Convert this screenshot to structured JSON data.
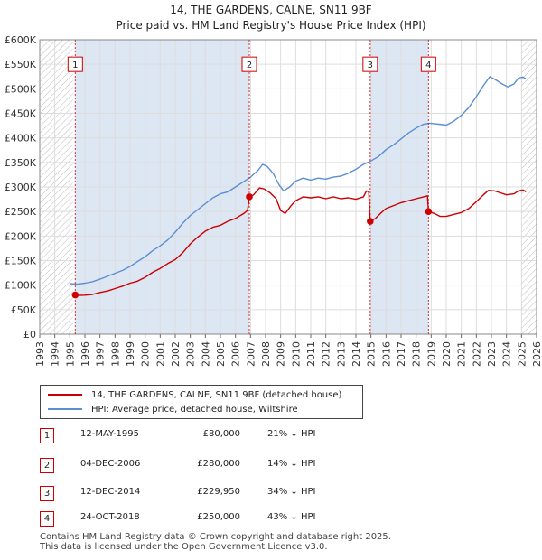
{
  "title": "14, THE GARDENS, CALNE, SN11 9BF",
  "subtitle": "Price paid vs. HM Land Registry's House Price Index (HPI)",
  "colors": {
    "property": "#cc0000",
    "hpi": "#5b8fd0",
    "shade": "#dde6f3",
    "grid": "#dddddd",
    "marker": "#cc0000"
  },
  "chart_data": {
    "type": "line",
    "title": "14, THE GARDENS, CALNE, SN11 9BF",
    "subtitle": "Price paid vs. HM Land Registry's House Price Index (HPI)",
    "xlabel": "",
    "ylabel": "",
    "xlim": [
      1993,
      2026
    ],
    "ylim": [
      0,
      600000
    ],
    "x_ticks": [
      "1993",
      "1994",
      "1995",
      "1996",
      "1997",
      "1998",
      "1999",
      "2000",
      "2001",
      "2002",
      "2003",
      "2004",
      "2005",
      "2006",
      "2007",
      "2008",
      "2009",
      "2010",
      "2011",
      "2012",
      "2013",
      "2014",
      "2015",
      "2016",
      "2017",
      "2018",
      "2019",
      "2020",
      "2021",
      "2022",
      "2023",
      "2024",
      "2025",
      "2026"
    ],
    "y_ticks": [
      "£0",
      "£50K",
      "£100K",
      "£150K",
      "£200K",
      "£250K",
      "£300K",
      "£350K",
      "£400K",
      "£450K",
      "£500K",
      "£550K",
      "£600K"
    ],
    "hatched_ranges": [
      [
        1993,
        1995.2
      ],
      [
        2025.0,
        2026
      ]
    ],
    "shaded_ranges": [
      [
        1995.36,
        2006.92
      ],
      [
        2014.95,
        2018.82
      ]
    ],
    "series": [
      {
        "name": "14, THE GARDENS, CALNE, SN11 9BF (detached house)",
        "color": "#cc0000",
        "points": [
          [
            1995.2,
            84000
          ],
          [
            1995.36,
            80000
          ],
          [
            1995.6,
            79000
          ],
          [
            1996.0,
            79500
          ],
          [
            1996.5,
            81000
          ],
          [
            1997.0,
            85000
          ],
          [
            1997.5,
            88000
          ],
          [
            1998.0,
            93000
          ],
          [
            1998.5,
            98000
          ],
          [
            1999.0,
            104000
          ],
          [
            1999.5,
            108000
          ],
          [
            2000.0,
            116000
          ],
          [
            2000.5,
            126000
          ],
          [
            2001.0,
            134000
          ],
          [
            2001.5,
            144000
          ],
          [
            2002.0,
            152000
          ],
          [
            2002.5,
            166000
          ],
          [
            2003.0,
            184000
          ],
          [
            2003.5,
            198000
          ],
          [
            2004.0,
            210000
          ],
          [
            2004.5,
            218000
          ],
          [
            2005.0,
            222000
          ],
          [
            2005.5,
            230000
          ],
          [
            2006.0,
            236000
          ],
          [
            2006.5,
            245000
          ],
          [
            2006.8,
            252000
          ],
          [
            2006.92,
            280000
          ],
          [
            2007.2,
            284000
          ],
          [
            2007.6,
            298000
          ],
          [
            2007.9,
            296000
          ],
          [
            2008.3,
            288000
          ],
          [
            2008.7,
            276000
          ],
          [
            2009.0,
            252000
          ],
          [
            2009.3,
            246000
          ],
          [
            2009.7,
            262000
          ],
          [
            2010.0,
            272000
          ],
          [
            2010.5,
            280000
          ],
          [
            2011.0,
            278000
          ],
          [
            2011.5,
            280000
          ],
          [
            2012.0,
            276000
          ],
          [
            2012.5,
            280000
          ],
          [
            2013.0,
            276000
          ],
          [
            2013.5,
            278000
          ],
          [
            2014.0,
            275000
          ],
          [
            2014.5,
            280000
          ],
          [
            2014.7,
            292000
          ],
          [
            2014.85,
            290000
          ],
          [
            2014.95,
            229950
          ],
          [
            2015.3,
            236000
          ],
          [
            2015.7,
            248000
          ],
          [
            2016.0,
            256000
          ],
          [
            2016.5,
            262000
          ],
          [
            2017.0,
            268000
          ],
          [
            2017.5,
            272000
          ],
          [
            2018.0,
            276000
          ],
          [
            2018.5,
            280000
          ],
          [
            2018.75,
            282000
          ],
          [
            2018.82,
            250000
          ],
          [
            2019.2,
            246000
          ],
          [
            2019.6,
            240000
          ],
          [
            2020.0,
            240000
          ],
          [
            2020.5,
            244000
          ],
          [
            2021.0,
            248000
          ],
          [
            2021.5,
            256000
          ],
          [
            2022.0,
            270000
          ],
          [
            2022.5,
            285000
          ],
          [
            2022.8,
            293000
          ],
          [
            2023.2,
            292000
          ],
          [
            2023.6,
            288000
          ],
          [
            2024.0,
            284000
          ],
          [
            2024.5,
            286000
          ],
          [
            2024.8,
            292000
          ],
          [
            2025.1,
            294000
          ],
          [
            2025.3,
            290000
          ]
        ]
      },
      {
        "name": "HPI: Average price, detached house, Wiltshire",
        "color": "#5b8fd0",
        "points": [
          [
            1995.0,
            103000
          ],
          [
            1995.5,
            102000
          ],
          [
            1996.0,
            104000
          ],
          [
            1996.5,
            107000
          ],
          [
            1997.0,
            112000
          ],
          [
            1997.5,
            118000
          ],
          [
            1998.0,
            124000
          ],
          [
            1998.5,
            130000
          ],
          [
            1999.0,
            138000
          ],
          [
            1999.5,
            148000
          ],
          [
            2000.0,
            158000
          ],
          [
            2000.5,
            170000
          ],
          [
            2001.0,
            180000
          ],
          [
            2001.5,
            192000
          ],
          [
            2002.0,
            208000
          ],
          [
            2002.5,
            226000
          ],
          [
            2003.0,
            242000
          ],
          [
            2003.5,
            254000
          ],
          [
            2004.0,
            266000
          ],
          [
            2004.5,
            278000
          ],
          [
            2005.0,
            286000
          ],
          [
            2005.5,
            290000
          ],
          [
            2006.0,
            300000
          ],
          [
            2006.5,
            310000
          ],
          [
            2007.0,
            320000
          ],
          [
            2007.5,
            334000
          ],
          [
            2007.8,
            346000
          ],
          [
            2008.1,
            342000
          ],
          [
            2008.5,
            328000
          ],
          [
            2008.9,
            304000
          ],
          [
            2009.2,
            292000
          ],
          [
            2009.6,
            300000
          ],
          [
            2010.0,
            312000
          ],
          [
            2010.5,
            318000
          ],
          [
            2011.0,
            314000
          ],
          [
            2011.5,
            318000
          ],
          [
            2012.0,
            316000
          ],
          [
            2012.5,
            320000
          ],
          [
            2013.0,
            322000
          ],
          [
            2013.5,
            328000
          ],
          [
            2014.0,
            336000
          ],
          [
            2014.5,
            346000
          ],
          [
            2014.95,
            352000
          ],
          [
            2015.5,
            362000
          ],
          [
            2016.0,
            376000
          ],
          [
            2016.5,
            386000
          ],
          [
            2017.0,
            398000
          ],
          [
            2017.5,
            410000
          ],
          [
            2018.0,
            420000
          ],
          [
            2018.5,
            428000
          ],
          [
            2018.9,
            430000
          ],
          [
            2019.5,
            428000
          ],
          [
            2020.0,
            426000
          ],
          [
            2020.5,
            434000
          ],
          [
            2021.0,
            446000
          ],
          [
            2021.5,
            462000
          ],
          [
            2022.0,
            484000
          ],
          [
            2022.5,
            508000
          ],
          [
            2022.9,
            525000
          ],
          [
            2023.3,
            518000
          ],
          [
            2023.7,
            510000
          ],
          [
            2024.1,
            504000
          ],
          [
            2024.5,
            510000
          ],
          [
            2024.8,
            522000
          ],
          [
            2025.1,
            524000
          ],
          [
            2025.3,
            520000
          ]
        ]
      }
    ],
    "annotations": [
      {
        "label": "1",
        "x": 1995.36,
        "y": 80000,
        "label_y": 550000
      },
      {
        "label": "2",
        "x": 2006.92,
        "y": 280000,
        "label_y": 550000
      },
      {
        "label": "3",
        "x": 2014.95,
        "y": 229950,
        "label_y": 550000
      },
      {
        "label": "4",
        "x": 2018.82,
        "y": 250000,
        "label_y": 550000
      }
    ]
  },
  "legend": {
    "property_label": "14, THE GARDENS, CALNE, SN11 9BF (detached house)",
    "hpi_label": "HPI: Average price, detached house, Wiltshire"
  },
  "transactions": [
    {
      "num": "1",
      "date": "12-MAY-1995",
      "price": "£80,000",
      "hpi": "21% ↓ HPI"
    },
    {
      "num": "2",
      "date": "04-DEC-2006",
      "price": "£280,000",
      "hpi": "14% ↓ HPI"
    },
    {
      "num": "3",
      "date": "12-DEC-2014",
      "price": "£229,950",
      "hpi": "34% ↓ HPI"
    },
    {
      "num": "4",
      "date": "24-OCT-2018",
      "price": "£250,000",
      "hpi": "43% ↓ HPI"
    }
  ],
  "footer": {
    "line1": "Contains HM Land Registry data © Crown copyright and database right 2025.",
    "line2": "This data is licensed under the Open Government Licence v3.0."
  }
}
